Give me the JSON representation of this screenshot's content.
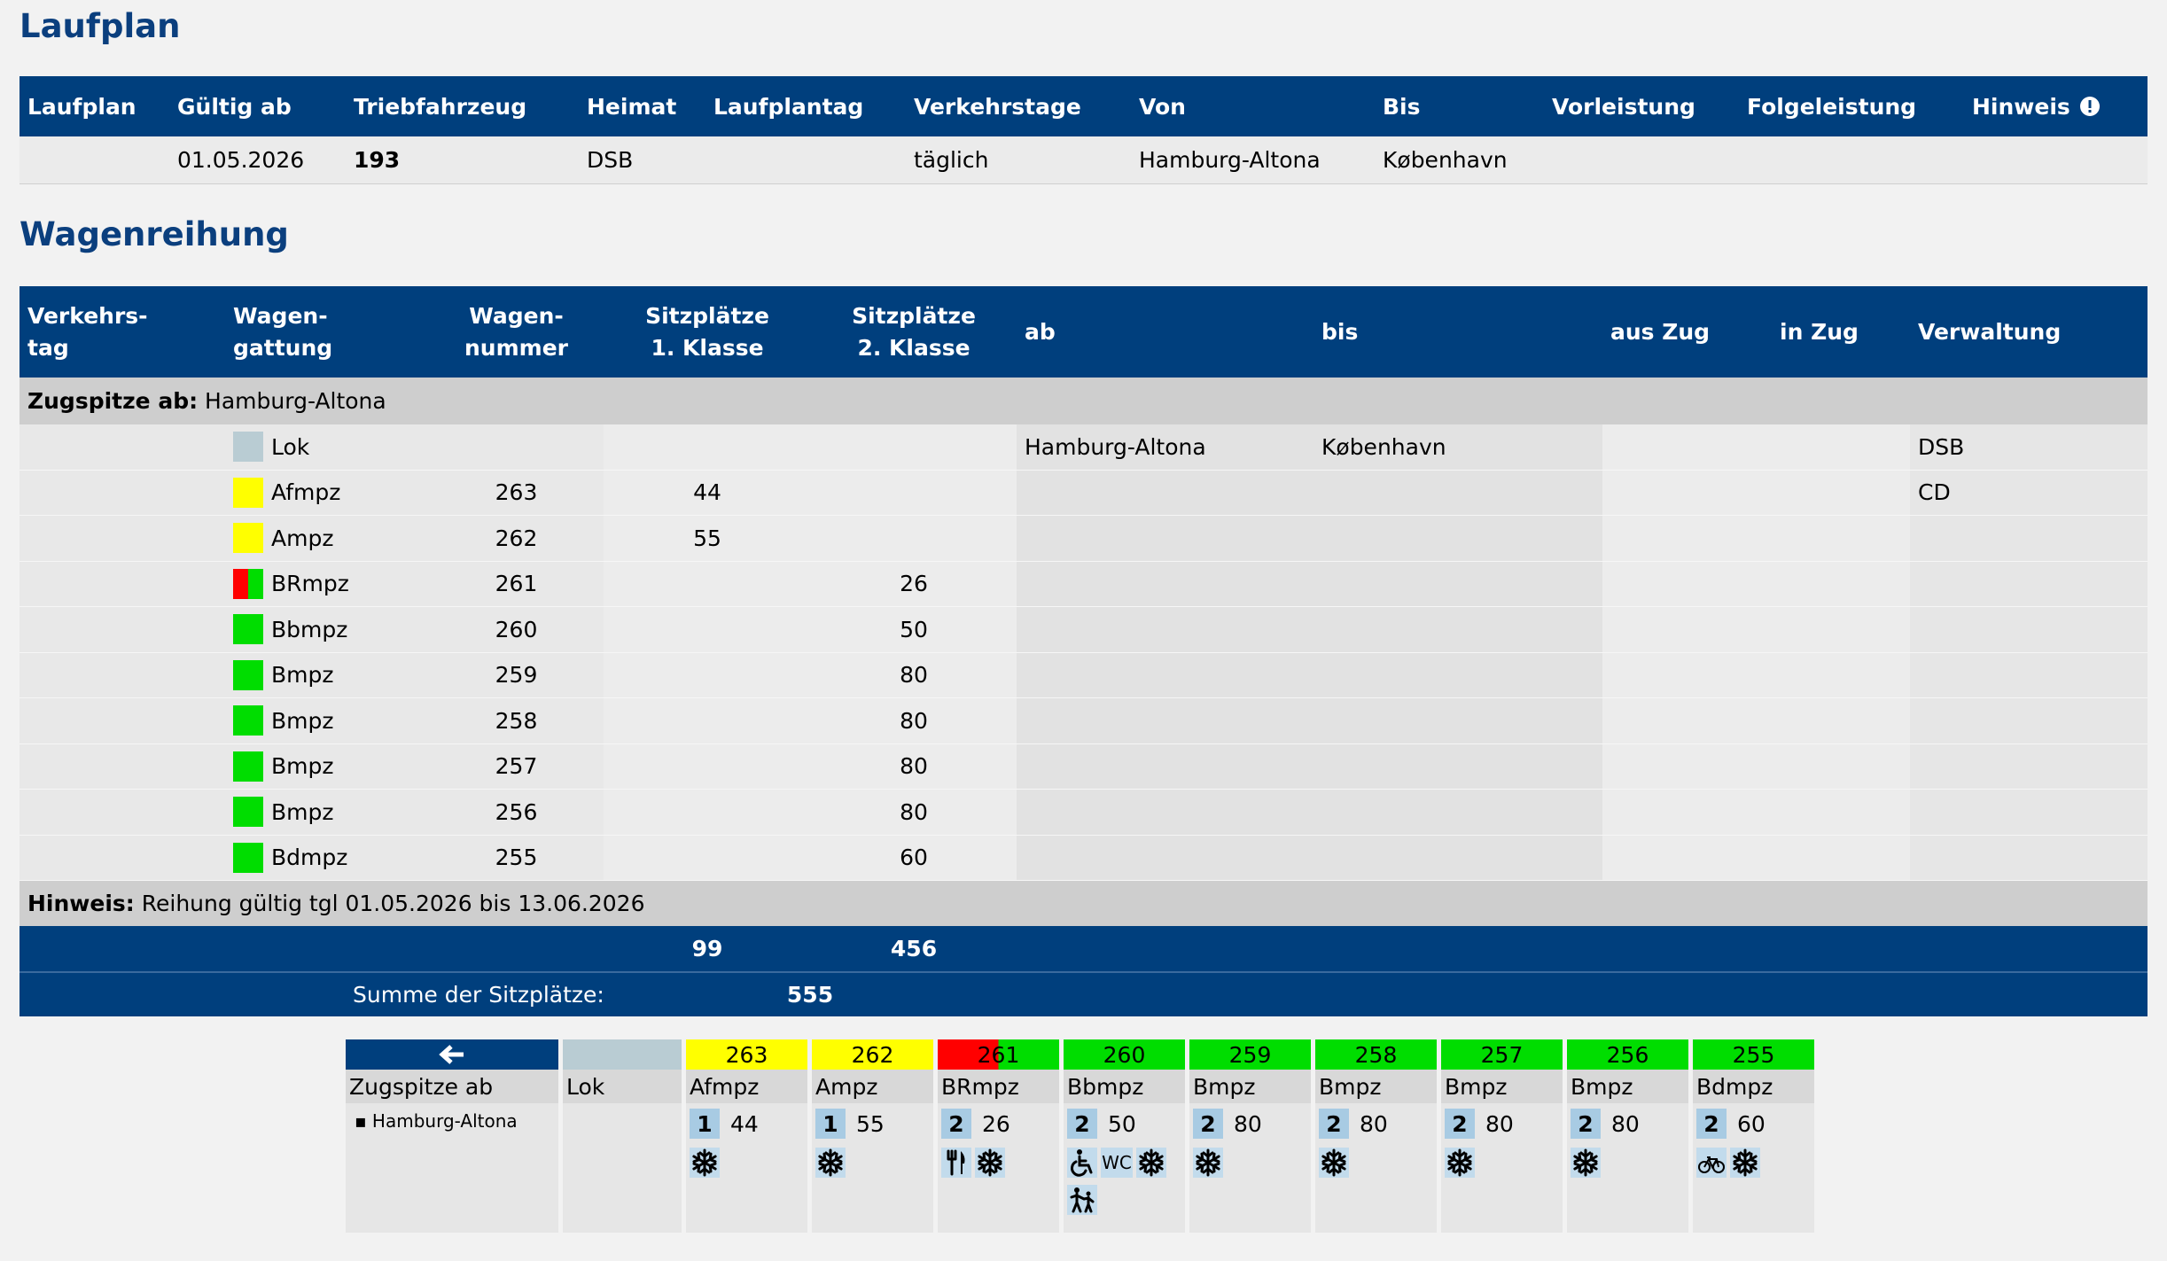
{
  "laufplan": {
    "title": "Laufplan",
    "columns": [
      "Laufplan",
      "Gültig ab",
      "Triebfahrzeug",
      "Heimat",
      "Laufplantag",
      "Verkehrstage",
      "Von",
      "Bis",
      "Vorleistung",
      "Folgeleistung",
      "Hinweis"
    ],
    "row": {
      "1": "01.05.2026",
      "2": "193",
      "3": "DSB",
      "5": "täglich",
      "6": "Hamburg-Altona",
      "7": "København"
    }
  },
  "wagenreihung": {
    "title": "Wagenreihung",
    "columns": [
      [
        "Verkehrs-",
        "tag"
      ],
      [
        "Wagen-",
        "gattung"
      ],
      [
        "Wagen-",
        "nummer"
      ],
      [
        "Sitzplätze",
        "1. Klasse"
      ],
      [
        "Sitzplätze",
        "2. Klasse"
      ],
      [
        "ab"
      ],
      [
        "bis"
      ],
      [
        "aus Zug"
      ],
      [
        "in Zug"
      ],
      [
        "Verwaltung"
      ]
    ],
    "zugspitze": {
      "label": "Zugspitze ab:",
      "station": "Hamburg-Altona"
    },
    "wagons": [
      {
        "gattung": "Lok",
        "colors": [
          "#b9ccd3"
        ],
        "ab": "Hamburg-Altona",
        "bis": "København",
        "verwaltung": "DSB"
      },
      {
        "gattung": "Afmpz",
        "nummer": 263,
        "sitz1": 44,
        "colors": [
          "#ffff00"
        ],
        "verwaltung": "CD",
        "klasse": 1,
        "klima": true
      },
      {
        "gattung": "Ampz",
        "nummer": 262,
        "sitz1": 55,
        "colors": [
          "#ffff00"
        ],
        "klasse": 1,
        "klima": true
      },
      {
        "gattung": "BRmpz",
        "nummer": 261,
        "sitz2": 26,
        "colors": [
          "#ff0000",
          "#00dd00"
        ],
        "klasse": 2,
        "restaurant": true,
        "klima": true
      },
      {
        "gattung": "Bbmpz",
        "nummer": 260,
        "sitz2": 50,
        "colors": [
          "#00dd00"
        ],
        "klasse": 2,
        "rollstuhl": true,
        "wc": "WC",
        "klima": true,
        "kinder": true
      },
      {
        "gattung": "Bmpz",
        "nummer": 259,
        "sitz2": 80,
        "colors": [
          "#00dd00"
        ],
        "klasse": 2,
        "klima": true
      },
      {
        "gattung": "Bmpz",
        "nummer": 258,
        "sitz2": 80,
        "colors": [
          "#00dd00"
        ],
        "klasse": 2,
        "klima": true
      },
      {
        "gattung": "Bmpz",
        "nummer": 257,
        "sitz2": 80,
        "colors": [
          "#00dd00"
        ],
        "klasse": 2,
        "klima": true
      },
      {
        "gattung": "Bmpz",
        "nummer": 256,
        "sitz2": 80,
        "colors": [
          "#00dd00"
        ],
        "klasse": 2,
        "klima": true
      },
      {
        "gattung": "Bdmpz",
        "nummer": 255,
        "sitz2": 60,
        "colors": [
          "#00dd00"
        ],
        "klasse": 2,
        "fahrrad": true,
        "klima": true
      }
    ],
    "hinweis": {
      "label": "Hinweis:",
      "text": "Reihung gültig tgl 01.05.2026 bis 13.06.2026"
    },
    "summe1": 99,
    "summe2": 456,
    "summe_label": "Summe der Sitzplätze:",
    "summe": 555
  },
  "diagramm": {
    "zugspitze": "Zugspitze ab",
    "station": "Hamburg-Altona"
  }
}
